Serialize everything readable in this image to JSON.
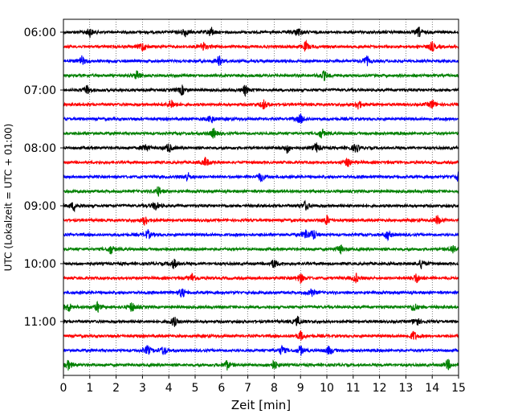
{
  "chart_data": {
    "type": "line",
    "title": "",
    "xlabel": "Zeit  [min]",
    "ylabel": "UTC (Lokalzeit = UTC + 01:00)",
    "xlim": [
      0,
      15
    ],
    "x_ticks": [
      "0",
      "1",
      "2",
      "3",
      "4",
      "5",
      "6",
      "7",
      "8",
      "9",
      "10",
      "11",
      "12",
      "13",
      "14",
      "15"
    ],
    "y_tick_labels": [
      "06:00",
      "07:00",
      "08:00",
      "09:00",
      "10:00",
      "11:00"
    ],
    "grid": "vertical dotted lines at each minute",
    "trace_interval_minutes": 15,
    "trace_colors": [
      "#000000",
      "#ff0000",
      "#0000ff",
      "#008000"
    ],
    "traces": [
      {
        "start": "06:00",
        "color": "#000000",
        "events": [
          1.0,
          4.6,
          5.6,
          8.9,
          13.5
        ]
      },
      {
        "start": "06:15",
        "color": "#ff0000",
        "events": [
          3.0,
          5.3,
          9.2,
          14.0
        ]
      },
      {
        "start": "06:30",
        "color": "#0000ff",
        "events": [
          0.7,
          5.9,
          11.5
        ]
      },
      {
        "start": "06:45",
        "color": "#008000",
        "events": [
          2.8,
          9.9
        ]
      },
      {
        "start": "07:00",
        "color": "#000000",
        "events": [
          0.9,
          4.5,
          6.9
        ]
      },
      {
        "start": "07:15",
        "color": "#ff0000",
        "events": [
          4.1,
          7.6,
          11.2,
          14.0
        ]
      },
      {
        "start": "07:30",
        "color": "#0000ff",
        "events": [
          5.6,
          9.0
        ]
      },
      {
        "start": "07:45",
        "color": "#008000",
        "events": [
          5.7,
          9.8
        ]
      },
      {
        "start": "08:00",
        "color": "#000000",
        "events": [
          3.1,
          4.0,
          8.5,
          9.6,
          11.1
        ]
      },
      {
        "start": "08:15",
        "color": "#ff0000",
        "events": [
          5.4,
          10.8
        ]
      },
      {
        "start": "08:30",
        "color": "#0000ff",
        "events": [
          4.7,
          7.5,
          15.0
        ]
      },
      {
        "start": "08:45",
        "color": "#008000",
        "events": [
          3.6
        ]
      },
      {
        "start": "09:00",
        "color": "#000000",
        "events": [
          0.4,
          3.5,
          9.2
        ]
      },
      {
        "start": "09:15",
        "color": "#ff0000",
        "events": [
          3.1,
          10.0,
          14.2
        ]
      },
      {
        "start": "09:30",
        "color": "#0000ff",
        "events": [
          3.2,
          9.2,
          9.5,
          12.3
        ]
      },
      {
        "start": "09:45",
        "color": "#008000",
        "events": [
          1.8,
          10.5,
          14.8
        ]
      },
      {
        "start": "10:00",
        "color": "#000000",
        "events": [
          4.2,
          8.0,
          13.6
        ]
      },
      {
        "start": "10:15",
        "color": "#ff0000",
        "events": [
          4.9,
          9.0,
          11.1,
          13.4
        ]
      },
      {
        "start": "10:30",
        "color": "#0000ff",
        "events": [
          4.5,
          9.4
        ]
      },
      {
        "start": "10:45",
        "color": "#008000",
        "events": [
          0.2,
          1.3,
          2.6,
          13.3
        ]
      },
      {
        "start": "11:00",
        "color": "#000000",
        "events": [
          4.2,
          8.9,
          13.4
        ]
      },
      {
        "start": "11:15",
        "color": "#ff0000",
        "events": [
          9.0,
          13.3
        ]
      },
      {
        "start": "11:30",
        "color": "#0000ff",
        "events": [
          3.2,
          3.8,
          8.3,
          9.0,
          10.1
        ]
      },
      {
        "start": "11:45",
        "color": "#008000",
        "events": [
          0.2,
          6.2,
          8.0,
          14.6
        ]
      }
    ]
  }
}
